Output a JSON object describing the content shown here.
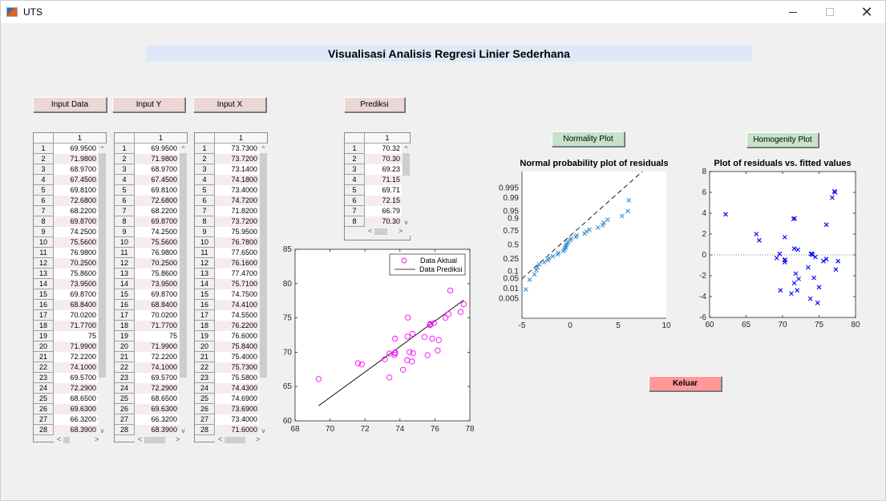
{
  "window": {
    "title": "UTS",
    "controls": {
      "minimize": "—",
      "maximize": "□",
      "close": "✕"
    }
  },
  "banner": {
    "title": "Visualisasi Analisis Regresi Linier Sederhana"
  },
  "buttons": {
    "input_data": "Input Data",
    "input_y": "Input Y",
    "input_x": "Input X",
    "prediksi": "Prediksi",
    "normality": "Normality Plot",
    "homogenity": "Homogenity Plot",
    "keluar": "Keluar"
  },
  "colors": {
    "pink_button": "#ecd6d6",
    "green_button": "#c6e2c8",
    "exit_button": "#ff9999",
    "banner_bg": "#dde9f8",
    "scatter_marker": "#ff00ff",
    "normality_marker": "#3a8fd0",
    "homogenity_marker": "#0000ff"
  },
  "tables": {
    "data": {
      "column_header": "1",
      "row_numbers": [
        "1",
        "2",
        "3",
        "4",
        "5",
        "6",
        "7",
        "8",
        "9",
        "10",
        "11",
        "12",
        "13",
        "14",
        "15",
        "16",
        "17",
        "18",
        "19",
        "20",
        "21",
        "22",
        "23",
        "24",
        "25",
        "26",
        "27",
        "28"
      ],
      "values": [
        "69.9500",
        "71.9800",
        "68.9700",
        "67.4500",
        "69.8100",
        "72.6800",
        "68.2200",
        "69.8700",
        "74.2500",
        "75.5600",
        "76.9800",
        "70.2500",
        "75.8600",
        "73.9500",
        "69.8700",
        "68.8400",
        "70.0200",
        "71.7700",
        "75",
        "71.9900",
        "72.2200",
        "74.1000",
        "69.5700",
        "72.2900",
        "68.6500",
        "69.6300",
        "66.3200",
        "68.3900"
      ]
    },
    "y": {
      "column_header": "1",
      "row_numbers": [
        "1",
        "2",
        "3",
        "4",
        "5",
        "6",
        "7",
        "8",
        "9",
        "10",
        "11",
        "12",
        "13",
        "14",
        "15",
        "16",
        "17",
        "18",
        "19",
        "20",
        "21",
        "22",
        "23",
        "24",
        "25",
        "26",
        "27",
        "28"
      ],
      "values": [
        "69.9500",
        "71.9800",
        "68.9700",
        "67.4500",
        "69.8100",
        "72.6800",
        "68.2200",
        "69.8700",
        "74.2500",
        "75.5600",
        "76.9800",
        "70.2500",
        "75.8600",
        "73.9500",
        "69.8700",
        "68.8400",
        "70.0200",
        "71.7700",
        "75",
        "71.9900",
        "72.2200",
        "74.1000",
        "69.5700",
        "72.2900",
        "68.6500",
        "69.6300",
        "66.3200",
        "68.3900"
      ]
    },
    "x": {
      "column_header": "1",
      "row_numbers": [
        "1",
        "2",
        "3",
        "4",
        "5",
        "6",
        "7",
        "8",
        "9",
        "10",
        "11",
        "12",
        "13",
        "14",
        "15",
        "16",
        "17",
        "18",
        "19",
        "20",
        "21",
        "22",
        "23",
        "24",
        "25",
        "26",
        "27",
        "28"
      ],
      "values": [
        "73.7300",
        "73.7200",
        "73.1400",
        "74.1800",
        "73.4000",
        "74.7200",
        "71.8200",
        "73.7200",
        "75.9500",
        "76.7800",
        "77.6500",
        "76.1600",
        "77.4700",
        "75.7100",
        "74.7500",
        "74.4100",
        "74.5500",
        "76.2200",
        "76.6000",
        "75.8400",
        "75.4000",
        "75.7300",
        "75.5800",
        "74.4300",
        "74.6900",
        "73.6900",
        "73.4000",
        "71.6000"
      ]
    },
    "prediksi": {
      "column_header": "1",
      "row_numbers": [
        "1",
        "2",
        "3",
        "4",
        "5",
        "6",
        "7",
        "8"
      ],
      "values": [
        "70.32",
        "70.30",
        "69.23",
        "71.15",
        "69.71",
        "72.15",
        "66.79",
        "70.30"
      ]
    }
  },
  "chart_data": [
    {
      "type": "scatter",
      "title": "",
      "xlabel": "",
      "ylabel": "",
      "xlim": [
        68,
        78
      ],
      "ylim": [
        60,
        85
      ],
      "xticks": [
        68,
        70,
        72,
        74,
        76,
        78
      ],
      "yticks": [
        60,
        65,
        70,
        75,
        80,
        85
      ],
      "legend": [
        "Data Aktual",
        "Data Prediksi"
      ],
      "legend_position": "northeast",
      "series": [
        {
          "name": "Data Aktual",
          "marker": "circle",
          "points": [
            [
              73.73,
              69.95
            ],
            [
              73.72,
              71.98
            ],
            [
              73.14,
              68.97
            ],
            [
              74.18,
              67.45
            ],
            [
              73.4,
              69.81
            ],
            [
              74.72,
              72.68
            ],
            [
              71.82,
              68.22
            ],
            [
              73.72,
              69.87
            ],
            [
              75.95,
              74.25
            ],
            [
              76.78,
              75.56
            ],
            [
              77.65,
              76.98
            ],
            [
              76.16,
              70.25
            ],
            [
              77.47,
              75.86
            ],
            [
              75.71,
              73.95
            ],
            [
              74.75,
              69.87
            ],
            [
              74.41,
              68.84
            ],
            [
              74.55,
              70.02
            ],
            [
              76.22,
              71.77
            ],
            [
              76.6,
              75.0
            ],
            [
              75.84,
              71.99
            ],
            [
              75.4,
              72.22
            ],
            [
              75.73,
              74.1
            ],
            [
              75.58,
              69.57
            ],
            [
              74.43,
              72.29
            ],
            [
              74.69,
              68.65
            ],
            [
              73.69,
              69.63
            ],
            [
              73.4,
              66.32
            ],
            [
              71.6,
              68.39
            ],
            [
              69.35,
              66.1
            ],
            [
              74.45,
              75.05
            ],
            [
              76.88,
              79.0
            ],
            [
              75.75,
              74.05
            ]
          ]
        },
        {
          "name": "Data Prediksi",
          "type": "line",
          "points": [
            [
              69.35,
              62.2
            ],
            [
              77.65,
              77.6
            ]
          ]
        }
      ]
    },
    {
      "type": "scatter",
      "title": "Normal probability plot of residuals",
      "xlim": [
        -5,
        10
      ],
      "xticks": [
        -5,
        0,
        5,
        10
      ],
      "yticks": [
        "0.005",
        "0.01",
        "0.05",
        "0.1",
        "0.25",
        "0.5",
        "0.75",
        "0.9",
        "0.95",
        "0.99",
        "0.995"
      ],
      "series": [
        {
          "name": "residuals",
          "marker": "x",
          "points": [
            [
              -4.6,
              0.015
            ],
            [
              -4.2,
              0.045
            ],
            [
              -3.7,
              0.075
            ],
            [
              -3.5,
              0.11
            ],
            [
              -3.4,
              0.14
            ],
            [
              -3.2,
              0.17
            ],
            [
              -2.7,
              0.2
            ],
            [
              -2.3,
              0.23
            ],
            [
              -2.2,
              0.26
            ],
            [
              -1.8,
              0.29
            ],
            [
              -1.3,
              0.32
            ],
            [
              -1.2,
              0.35
            ],
            [
              -0.7,
              0.38
            ],
            [
              -0.6,
              0.41
            ],
            [
              -0.5,
              0.44
            ],
            [
              -0.45,
              0.47
            ],
            [
              -0.4,
              0.5
            ],
            [
              -0.3,
              0.53
            ],
            [
              -0.2,
              0.56
            ],
            [
              0.0,
              0.59
            ],
            [
              0.1,
              0.62
            ],
            [
              0.6,
              0.65
            ],
            [
              0.7,
              0.68
            ],
            [
              1.5,
              0.71
            ],
            [
              1.7,
              0.74
            ],
            [
              2.0,
              0.77
            ],
            [
              2.9,
              0.8
            ],
            [
              3.4,
              0.83
            ],
            [
              3.5,
              0.86
            ],
            [
              3.9,
              0.89
            ],
            [
              5.4,
              0.92
            ],
            [
              6.0,
              0.95
            ],
            [
              6.1,
              0.985
            ]
          ]
        },
        {
          "name": "reference line",
          "type": "line",
          "style": "dashed"
        }
      ]
    },
    {
      "type": "scatter",
      "title": "Plot of residuals vs. fitted values",
      "xlim": [
        60,
        80
      ],
      "ylim": [
        -6,
        8
      ],
      "xticks": [
        60,
        65,
        70,
        75,
        80
      ],
      "yticks": [
        -6,
        -4,
        -2,
        0,
        2,
        4,
        6,
        8
      ],
      "zero_line": "dotted",
      "series": [
        {
          "name": "residuals",
          "marker": "x",
          "points": [
            [
              62.2,
              3.9
            ],
            [
              66.4,
              2.0
            ],
            [
              66.8,
              1.4
            ],
            [
              69.2,
              -0.3
            ],
            [
              69.6,
              0.1
            ],
            [
              69.7,
              -3.4
            ],
            [
              70.3,
              1.7
            ],
            [
              70.3,
              -0.5
            ],
            [
              70.35,
              -0.45
            ],
            [
              70.3,
              -0.7
            ],
            [
              71.2,
              -3.7
            ],
            [
              71.5,
              3.45
            ],
            [
              71.65,
              3.5
            ],
            [
              71.6,
              0.6
            ],
            [
              71.6,
              -2.7
            ],
            [
              71.8,
              -1.8
            ],
            [
              72.0,
              -3.4
            ],
            [
              72.1,
              0.5
            ],
            [
              72.2,
              -2.3
            ],
            [
              73.5,
              -1.2
            ],
            [
              73.8,
              -4.2
            ],
            [
              73.9,
              0.1
            ],
            [
              74.0,
              0.1
            ],
            [
              74.1,
              0.0
            ],
            [
              74.3,
              -2.2
            ],
            [
              74.5,
              -0.2
            ],
            [
              74.8,
              -4.6
            ],
            [
              75.0,
              -3.1
            ],
            [
              75.6,
              -0.6
            ],
            [
              76.0,
              -0.4
            ],
            [
              76.0,
              2.9
            ],
            [
              76.8,
              5.5
            ],
            [
              77.1,
              6.1
            ],
            [
              77.2,
              6.0
            ],
            [
              77.3,
              -1.4
            ],
            [
              77.6,
              -0.6
            ]
          ]
        }
      ]
    }
  ]
}
